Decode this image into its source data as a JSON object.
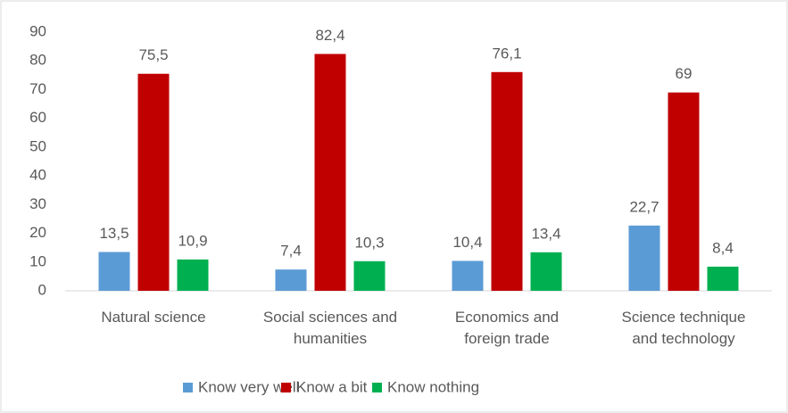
{
  "chart_data": {
    "type": "bar",
    "categories": [
      "Natural science",
      "Social sciences and\nhumanities",
      "Economics and\nforeign trade",
      "Science technique\nand technology"
    ],
    "series": [
      {
        "name": "Know very well",
        "color": "#5b9bd5",
        "values": [
          13.5,
          7.4,
          10.4,
          22.7
        ],
        "value_labels": [
          "13,5",
          "7,4",
          "10,4",
          "22,7"
        ]
      },
      {
        "name": "Know a bit",
        "color": "#c00000",
        "values": [
          75.5,
          82.4,
          76.1,
          69
        ],
        "value_labels": [
          "75,5",
          "82,4",
          "76,1",
          "69"
        ]
      },
      {
        "name": "Know nothing",
        "color": "#00b050",
        "values": [
          10.9,
          10.3,
          13.4,
          8.4
        ],
        "value_labels": [
          "10,9",
          "10,3",
          "13,4",
          "8,4"
        ]
      }
    ],
    "ylim": [
      0,
      90
    ],
    "yticks": [
      0,
      10,
      20,
      30,
      40,
      50,
      60,
      70,
      80,
      90
    ],
    "grid": false,
    "legend": "bottom"
  }
}
